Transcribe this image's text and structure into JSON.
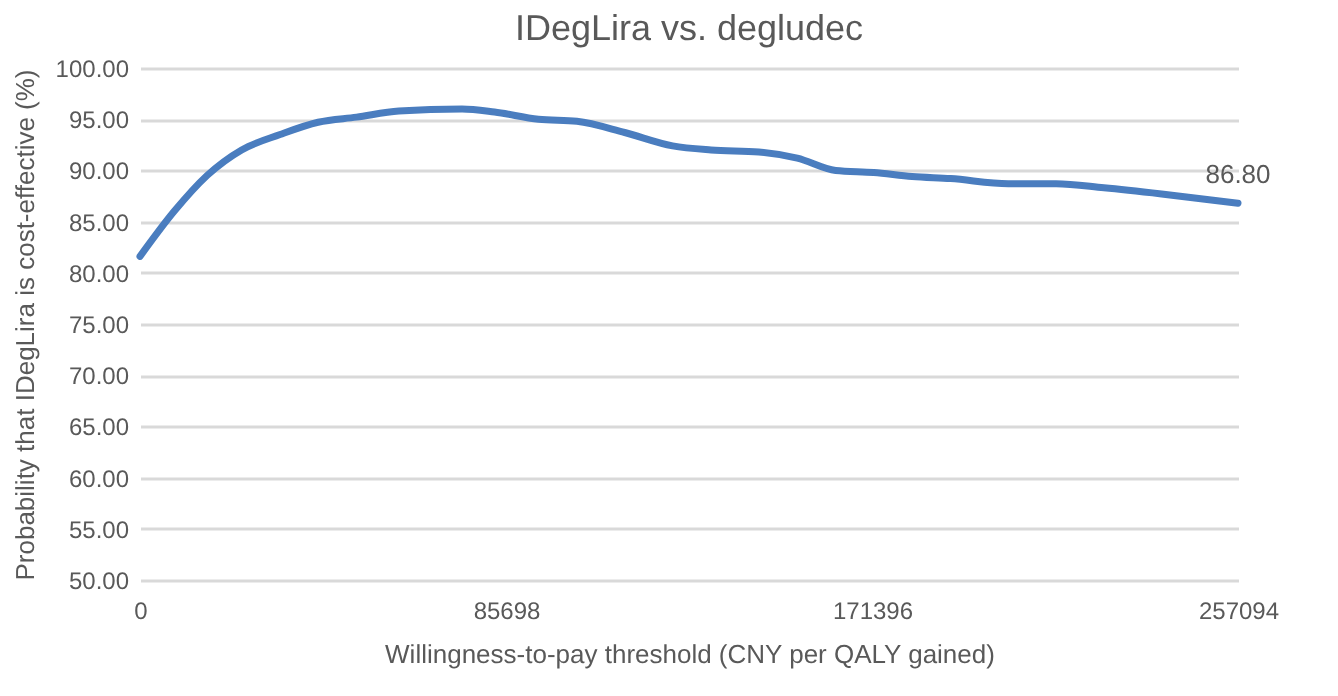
{
  "chart_data": {
    "type": "line",
    "title": "IDegLira vs. degludec",
    "xlabel": "Willingness-to-pay threshold (CNY per QALY gained)",
    "ylabel": "Probability that IDegLira is cost-effective (%)",
    "x": [
      0,
      8000,
      15700,
      23800,
      32800,
      41700,
      50700,
      60600,
      75400,
      83000,
      93300,
      102300,
      113500,
      124700,
      133700,
      144900,
      153900,
      162900,
      171800,
      180800,
      189800,
      203300,
      214500,
      225700,
      239200,
      257094
    ],
    "series": [
      {
        "color": "#4a7dbf",
        "values": [
          81.6,
          86.0,
          89.5,
          92.0,
          93.5,
          94.7,
          95.2,
          95.8,
          96.0,
          95.7,
          95.0,
          94.8,
          93.7,
          92.4,
          92.0,
          91.8,
          91.2,
          90.0,
          89.8,
          89.4,
          89.2,
          88.7,
          88.7,
          88.3,
          87.7,
          86.8
        ]
      }
    ],
    "xlim": [
      0,
      257094
    ],
    "xticks": [
      0,
      85698,
      171396,
      257094
    ],
    "ylim": [
      50,
      100
    ],
    "yticks": [
      {
        "value": 50,
        "label": "50.00"
      },
      {
        "value": 55,
        "label": "55.00"
      },
      {
        "value": 60,
        "label": "60.00"
      },
      {
        "value": 65,
        "label": "65.00"
      },
      {
        "value": 70,
        "label": "70.00"
      },
      {
        "value": 75,
        "label": "75.00"
      },
      {
        "value": 80,
        "label": "80.00"
      },
      {
        "value": 85,
        "label": "85.00"
      },
      {
        "value": 90,
        "label": "90.00"
      },
      {
        "value": 95,
        "label": "95.00"
      },
      {
        "value": 100,
        "label": "100.00"
      }
    ],
    "grid": "y",
    "marker": "none",
    "line_style": "solid",
    "annotations": [
      {
        "text": "86.80",
        "x": 257094,
        "y": 86.8
      }
    ]
  }
}
